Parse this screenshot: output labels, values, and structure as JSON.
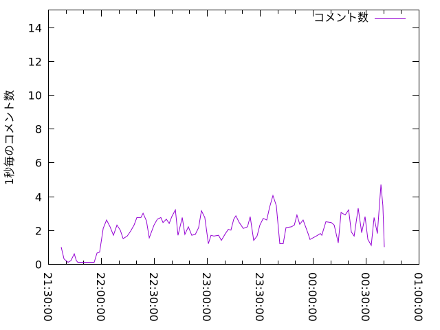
{
  "chart_data": {
    "type": "line",
    "title": "",
    "xlabel": "",
    "ylabel": "1秒毎のコメント数",
    "xlim": [
      "21:30:00",
      "01:00:00"
    ],
    "ylim": [
      0,
      15
    ],
    "x_ticks": [
      "21:30:00",
      "22:00:00",
      "22:30:00",
      "23:00:00",
      "23:30:00",
      "00:00:00",
      "00:30:00",
      "01:00:00"
    ],
    "y_ticks": [
      0,
      2,
      4,
      6,
      8,
      10,
      12,
      14
    ],
    "grid": false,
    "legend_position": "top-right",
    "series": [
      {
        "name": "コメント数",
        "color": "#9400d3",
        "x": [
          "21:37:24",
          "21:39:00",
          "21:41:18",
          "21:42:54",
          "21:44:48",
          "21:46:00",
          "21:46:48",
          "21:49:30",
          "21:56:06",
          "21:57:42",
          "21:59:12",
          "22:01:12",
          "22:03:06",
          "22:05:06",
          "22:07:00",
          "22:09:00",
          "22:10:54",
          "22:12:30",
          "22:14:48",
          "22:16:48",
          "22:18:42",
          "22:20:18",
          "22:22:36",
          "22:23:48",
          "22:25:42",
          "22:27:18",
          "22:30:00",
          "22:31:54",
          "22:33:54",
          "22:35:06",
          "22:37:00",
          "22:38:36",
          "22:40:06",
          "22:42:06",
          "22:43:36",
          "22:46:00",
          "22:47:30",
          "22:49:30",
          "22:51:24",
          "22:53:24",
          "22:55:18",
          "22:56:54",
          "22:58:48",
          "23:00:48",
          "23:02:18",
          "23:03:54",
          "23:06:36",
          "23:08:12",
          "23:10:30",
          "23:12:06",
          "23:13:36",
          "23:15:12",
          "23:16:24",
          "23:18:18",
          "23:20:36",
          "23:23:00",
          "23:24:30",
          "23:26:30",
          "23:28:24",
          "23:30:00",
          "23:31:54",
          "23:33:54",
          "23:35:30",
          "23:37:24",
          "23:39:18",
          "23:41:18",
          "23:43:12",
          "23:44:48",
          "23:47:54",
          "23:49:30",
          "23:51:00",
          "23:52:36",
          "23:54:30",
          "23:57:18",
          "23:58:24",
          "00:01:54",
          "00:04:18",
          "00:05:06",
          "00:07:24",
          "00:10:30",
          "00:12:06",
          "00:14:24",
          "00:16:00",
          "00:18:18",
          "00:20:18",
          "00:21:48",
          "00:23:24",
          "00:25:42",
          "00:27:42",
          "00:29:36",
          "00:31:12",
          "00:33:06",
          "00:34:42",
          "00:36:36",
          "00:38:36",
          "00:39:42",
          "00:40:30"
        ],
        "y": [
          1.0,
          0.3,
          0.1,
          0.2,
          0.6,
          0.2,
          0.1,
          0.1,
          0.1,
          0.65,
          0.7,
          2.1,
          2.6,
          2.2,
          1.7,
          2.3,
          2.0,
          1.5,
          1.65,
          1.95,
          2.3,
          2.75,
          2.75,
          3.0,
          2.55,
          1.55,
          2.3,
          2.65,
          2.75,
          2.45,
          2.65,
          2.4,
          2.8,
          3.2,
          1.7,
          2.75,
          1.75,
          2.2,
          1.7,
          1.75,
          2.15,
          3.15,
          2.75,
          1.2,
          1.7,
          1.65,
          1.7,
          1.4,
          1.8,
          2.05,
          2.0,
          2.65,
          2.85,
          2.45,
          2.1,
          2.2,
          2.8,
          1.4,
          1.65,
          2.3,
          2.7,
          2.6,
          3.35,
          4.05,
          3.45,
          1.2,
          1.2,
          2.15,
          2.2,
          2.3,
          2.9,
          2.35,
          2.6,
          1.8,
          1.45,
          1.65,
          1.8,
          1.7,
          2.5,
          2.45,
          2.3,
          1.25,
          3.05,
          2.9,
          3.2,
          1.9,
          1.65,
          3.3,
          1.85,
          2.8,
          1.45,
          1.1,
          2.75,
          1.8,
          4.7,
          3.45,
          1.0
        ]
      }
    ]
  }
}
